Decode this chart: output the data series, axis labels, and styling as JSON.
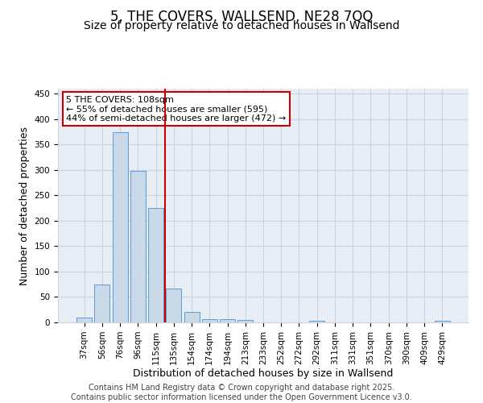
{
  "title": "5, THE COVERS, WALLSEND, NE28 7QQ",
  "subtitle": "Size of property relative to detached houses in Wallsend",
  "xlabel": "Distribution of detached houses by size in Wallsend",
  "ylabel": "Number of detached properties",
  "categories": [
    "37sqm",
    "56sqm",
    "76sqm",
    "96sqm",
    "115sqm",
    "135sqm",
    "154sqm",
    "174sqm",
    "194sqm",
    "213sqm",
    "233sqm",
    "252sqm",
    "272sqm",
    "292sqm",
    "311sqm",
    "331sqm",
    "351sqm",
    "370sqm",
    "390sqm",
    "409sqm",
    "429sqm"
  ],
  "values": [
    10,
    74,
    375,
    298,
    225,
    67,
    20,
    7,
    6,
    4,
    0,
    0,
    0,
    3,
    0,
    0,
    0,
    0,
    0,
    0,
    3
  ],
  "bar_color": "#c9d9e8",
  "bar_edge_color": "#5b9bd5",
  "grid_color": "#c8d4e0",
  "background_color": "#e8eef5",
  "vline_position": 4.5,
  "vline_color": "#cc0000",
  "annotation_text": "5 THE COVERS: 108sqm\n← 55% of detached houses are smaller (595)\n44% of semi-detached houses are larger (472) →",
  "annotation_box_color": "#ffffff",
  "annotation_box_edge_color": "#cc0000",
  "ylim": [
    0,
    460
  ],
  "yticks": [
    0,
    50,
    100,
    150,
    200,
    250,
    300,
    350,
    400,
    450
  ],
  "footer_text": "Contains HM Land Registry data © Crown copyright and database right 2025.\nContains public sector information licensed under the Open Government Licence v3.0.",
  "title_fontsize": 12,
  "subtitle_fontsize": 10,
  "label_fontsize": 9,
  "tick_fontsize": 7.5,
  "footer_fontsize": 7,
  "annotation_fontsize": 8
}
